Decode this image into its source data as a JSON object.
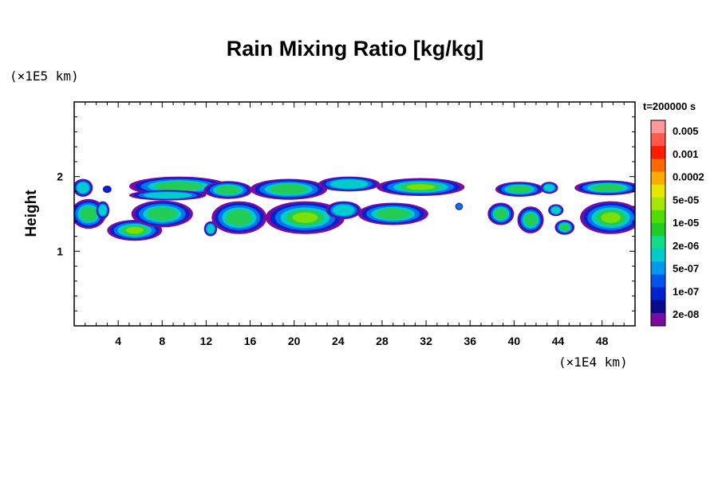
{
  "chart_data": {
    "type": "heatmap",
    "title": "Rain Mixing Ratio [kg/kg]",
    "xlabel": "",
    "ylabel": "Height",
    "x_unit_text": "(×1E4 km)",
    "y_unit_text": "(×1E5 km)",
    "time_label": "t=200000 s",
    "xlim": [
      0,
      51
    ],
    "ylim": [
      0,
      3
    ],
    "x_ticks": [
      4,
      8,
      12,
      16,
      20,
      24,
      28,
      32,
      36,
      40,
      44,
      48
    ],
    "y_ticks": [
      1,
      2
    ],
    "colorbar": {
      "labels": [
        "0.005",
        "0.001",
        "0.0002",
        "5e-05",
        "1e-05",
        "2e-06",
        "5e-07",
        "1e-07",
        "2e-08"
      ],
      "colors": [
        "#ff9999",
        "#ff5a4a",
        "#ff1a00",
        "#ff6a00",
        "#ffaa00",
        "#e6e600",
        "#a8e600",
        "#4fdc00",
        "#22cc22",
        "#11dd88",
        "#00cccc",
        "#0099ee",
        "#0055ee",
        "#0022cc",
        "#0a0a8a",
        "#7a0aa0"
      ]
    },
    "blobs": [
      {
        "x": 0.8,
        "y": 1.85,
        "rx": 0.9,
        "ry": 0.12,
        "level": 3
      },
      {
        "x": 3.0,
        "y": 1.83,
        "rx": 0.4,
        "ry": 0.05,
        "level": 1
      },
      {
        "x": 9.5,
        "y": 1.87,
        "rx": 4.5,
        "ry": 0.13,
        "level": 4
      },
      {
        "x": 8.5,
        "y": 1.75,
        "rx": 3.5,
        "ry": 0.07,
        "level": 3
      },
      {
        "x": 14.0,
        "y": 1.82,
        "rx": 2.2,
        "ry": 0.12,
        "level": 4
      },
      {
        "x": 19.5,
        "y": 1.83,
        "rx": 3.5,
        "ry": 0.14,
        "level": 4
      },
      {
        "x": 25.0,
        "y": 1.9,
        "rx": 2.8,
        "ry": 0.1,
        "level": 3
      },
      {
        "x": 31.5,
        "y": 1.86,
        "rx": 4.0,
        "ry": 0.12,
        "level": 5
      },
      {
        "x": 40.5,
        "y": 1.83,
        "rx": 2.2,
        "ry": 0.1,
        "level": 4
      },
      {
        "x": 43.2,
        "y": 1.85,
        "rx": 0.8,
        "ry": 0.08,
        "level": 3
      },
      {
        "x": 48.5,
        "y": 1.85,
        "rx": 3.0,
        "ry": 0.1,
        "level": 4
      },
      {
        "x": 1.3,
        "y": 1.5,
        "rx": 1.6,
        "ry": 0.2,
        "level": 4
      },
      {
        "x": 2.6,
        "y": 1.55,
        "rx": 0.6,
        "ry": 0.12,
        "level": 3
      },
      {
        "x": 5.5,
        "y": 1.28,
        "rx": 2.5,
        "ry": 0.14,
        "level": 5
      },
      {
        "x": 8.0,
        "y": 1.5,
        "rx": 2.8,
        "ry": 0.18,
        "level": 4
      },
      {
        "x": 12.4,
        "y": 1.3,
        "rx": 0.6,
        "ry": 0.1,
        "level": 3
      },
      {
        "x": 15.0,
        "y": 1.45,
        "rx": 2.5,
        "ry": 0.22,
        "level": 4
      },
      {
        "x": 21.0,
        "y": 1.45,
        "rx": 3.6,
        "ry": 0.22,
        "level": 5
      },
      {
        "x": 24.5,
        "y": 1.55,
        "rx": 1.6,
        "ry": 0.12,
        "level": 3
      },
      {
        "x": 29.0,
        "y": 1.5,
        "rx": 3.2,
        "ry": 0.15,
        "level": 4
      },
      {
        "x": 35.0,
        "y": 1.6,
        "rx": 0.35,
        "ry": 0.05,
        "level": 2
      },
      {
        "x": 38.8,
        "y": 1.5,
        "rx": 1.2,
        "ry": 0.15,
        "level": 4
      },
      {
        "x": 41.5,
        "y": 1.42,
        "rx": 1.2,
        "ry": 0.18,
        "level": 4
      },
      {
        "x": 43.8,
        "y": 1.55,
        "rx": 0.7,
        "ry": 0.08,
        "level": 3
      },
      {
        "x": 44.6,
        "y": 1.32,
        "rx": 0.9,
        "ry": 0.1,
        "level": 4
      },
      {
        "x": 48.8,
        "y": 1.45,
        "rx": 2.8,
        "ry": 0.22,
        "level": 5
      }
    ]
  }
}
